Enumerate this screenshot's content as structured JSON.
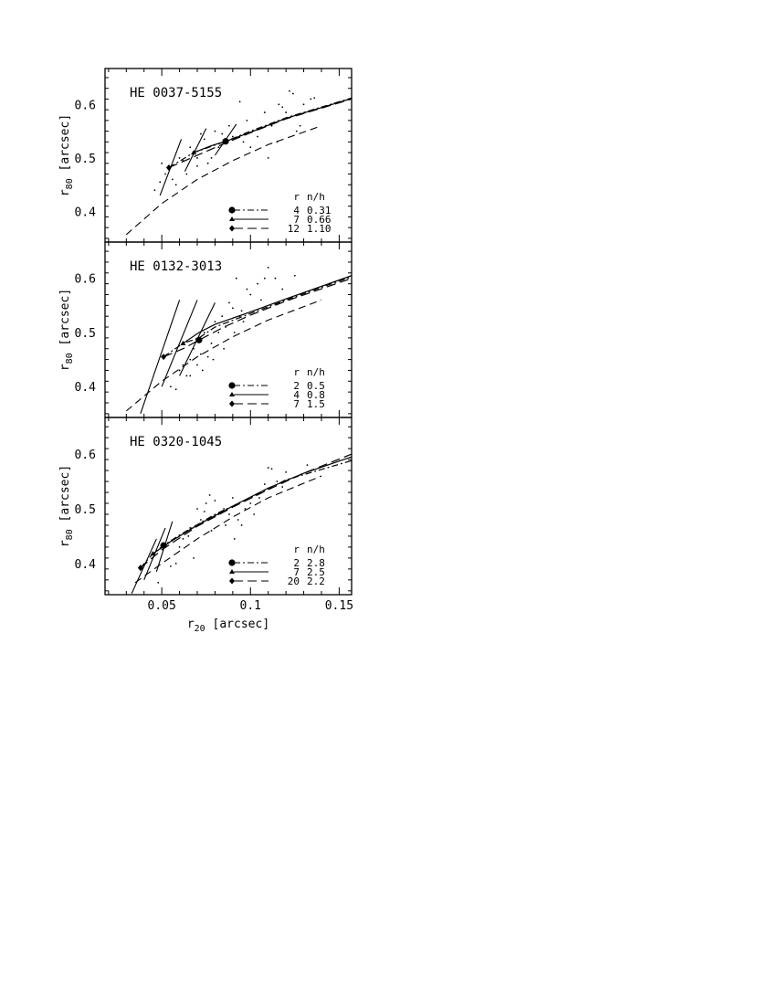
{
  "chart_data": [
    {
      "type": "scatter",
      "title": "HE 0037-5155",
      "ylabel": "r80 [arcsec]",
      "xlim": [
        0.018,
        0.157
      ],
      "ylim": [
        0.343,
        0.667
      ],
      "yticks": [
        "0.4",
        "0.5",
        "0.6"
      ],
      "legend": {
        "placement": "bottom-right",
        "header": [
          "r",
          "n/h"
        ],
        "entries": [
          {
            "marker": "circle",
            "style": "dash-dot",
            "r": "4",
            "nh": "0.31"
          },
          {
            "marker": "triangle",
            "style": "solid",
            "r": "7",
            "nh": "0.66"
          },
          {
            "marker": "diamond",
            "style": "long-dash",
            "r": "12",
            "nh": "1.10"
          }
        ]
      },
      "model_curve": [
        [
          0.03,
          0.357
        ],
        [
          0.05,
          0.415
        ],
        [
          0.07,
          0.46
        ],
        [
          0.09,
          0.495
        ],
        [
          0.11,
          0.525
        ],
        [
          0.14,
          0.56
        ]
      ],
      "fits": [
        [
          [
            0.054,
            0.482
          ],
          [
            0.068,
            0.51
          ],
          [
            0.086,
            0.531
          ],
          [
            0.1,
            0.55
          ],
          [
            0.12,
            0.575
          ],
          [
            0.157,
            0.612
          ]
        ],
        [
          [
            0.068,
            0.51
          ],
          [
            0.078,
            0.523
          ],
          [
            0.086,
            0.531
          ],
          [
            0.1,
            0.548
          ],
          [
            0.12,
            0.574
          ],
          [
            0.157,
            0.611
          ]
        ],
        [
          [
            0.054,
            0.482
          ],
          [
            0.07,
            0.505
          ],
          [
            0.086,
            0.528
          ],
          [
            0.1,
            0.547
          ],
          [
            0.12,
            0.573
          ],
          [
            0.157,
            0.61
          ]
        ]
      ],
      "markers": [
        {
          "shape": "diamond",
          "x": 0.054,
          "y": 0.482
        },
        {
          "shape": "triangle",
          "x": 0.068,
          "y": 0.51
        },
        {
          "shape": "circle",
          "x": 0.086,
          "y": 0.531
        }
      ],
      "slopes": [
        [
          [
            0.049,
            0.43
          ],
          [
            0.061,
            0.535
          ]
        ],
        [
          [
            0.063,
            0.475
          ],
          [
            0.075,
            0.555
          ]
        ],
        [
          [
            0.08,
            0.505
          ],
          [
            0.092,
            0.563
          ]
        ]
      ],
      "points": [
        [
          0.046,
          0.44
        ],
        [
          0.049,
          0.455
        ],
        [
          0.052,
          0.47
        ],
        [
          0.05,
          0.49
        ],
        [
          0.056,
          0.46
        ],
        [
          0.058,
          0.45
        ],
        [
          0.06,
          0.5
        ],
        [
          0.062,
          0.495
        ],
        [
          0.064,
          0.47
        ],
        [
          0.066,
          0.52
        ],
        [
          0.07,
          0.485
        ],
        [
          0.072,
          0.545
        ],
        [
          0.074,
          0.535
        ],
        [
          0.076,
          0.49
        ],
        [
          0.078,
          0.5
        ],
        [
          0.08,
          0.55
        ],
        [
          0.084,
          0.545
        ],
        [
          0.088,
          0.56
        ],
        [
          0.09,
          0.54
        ],
        [
          0.094,
          0.605
        ],
        [
          0.096,
          0.53
        ],
        [
          0.1,
          0.52
        ],
        [
          0.104,
          0.54
        ],
        [
          0.108,
          0.585
        ],
        [
          0.11,
          0.5
        ],
        [
          0.112,
          0.56
        ],
        [
          0.116,
          0.6
        ],
        [
          0.118,
          0.595
        ],
        [
          0.12,
          0.585
        ],
        [
          0.122,
          0.625
        ],
        [
          0.124,
          0.62
        ],
        [
          0.126,
          0.55
        ],
        [
          0.128,
          0.56
        ],
        [
          0.13,
          0.6
        ],
        [
          0.134,
          0.61
        ],
        [
          0.136,
          0.612
        ],
        [
          0.115,
          0.53
        ],
        [
          0.098,
          0.57
        ],
        [
          0.07,
          0.5
        ],
        [
          0.082,
          0.52
        ]
      ]
    },
    {
      "type": "scatter",
      "title": "HE 0132-3013",
      "ylabel": "r80 [arcsec]",
      "xlim": [
        0.018,
        0.157
      ],
      "ylim": [
        0.343,
        0.667
      ],
      "yticks": [
        "0.4",
        "0.5",
        "0.6"
      ],
      "legend": {
        "placement": "bottom-right",
        "header": [
          "r",
          "n/h"
        ],
        "entries": [
          {
            "marker": "circle",
            "style": "dash-dot",
            "r": "2",
            "nh": "0.5"
          },
          {
            "marker": "triangle",
            "style": "solid",
            "r": "4",
            "nh": "0.8"
          },
          {
            "marker": "diamond",
            "style": "long-dash",
            "r": "7",
            "nh": "1.5"
          }
        ]
      },
      "model_curve": [
        [
          0.03,
          0.355
        ],
        [
          0.05,
          0.41
        ],
        [
          0.07,
          0.455
        ],
        [
          0.09,
          0.492
        ],
        [
          0.11,
          0.523
        ],
        [
          0.14,
          0.56
        ]
      ],
      "fits": [
        [
          [
            0.051,
            0.455
          ],
          [
            0.062,
            0.48
          ],
          [
            0.071,
            0.49
          ],
          [
            0.08,
            0.51
          ],
          [
            0.1,
            0.535
          ],
          [
            0.12,
            0.56
          ],
          [
            0.157,
            0.603
          ]
        ],
        [
          [
            0.062,
            0.48
          ],
          [
            0.071,
            0.5
          ],
          [
            0.08,
            0.515
          ],
          [
            0.1,
            0.538
          ],
          [
            0.12,
            0.562
          ],
          [
            0.157,
            0.605
          ]
        ],
        [
          [
            0.051,
            0.455
          ],
          [
            0.062,
            0.47
          ],
          [
            0.071,
            0.486
          ],
          [
            0.085,
            0.51
          ],
          [
            0.1,
            0.532
          ],
          [
            0.12,
            0.558
          ],
          [
            0.157,
            0.6
          ]
        ]
      ],
      "markers": [
        {
          "shape": "diamond",
          "x": 0.051,
          "y": 0.455
        },
        {
          "shape": "triangle",
          "x": 0.062,
          "y": 0.48
        },
        {
          "shape": "circle",
          "x": 0.071,
          "y": 0.486
        }
      ],
      "slopes": [
        [
          [
            0.038,
            0.35
          ],
          [
            0.06,
            0.56
          ]
        ],
        [
          [
            0.05,
            0.4
          ],
          [
            0.07,
            0.56
          ]
        ],
        [
          [
            0.06,
            0.42
          ],
          [
            0.08,
            0.555
          ]
        ]
      ],
      "points": [
        [
          0.055,
          0.4
        ],
        [
          0.058,
          0.395
        ],
        [
          0.06,
          0.43
        ],
        [
          0.062,
          0.44
        ],
        [
          0.064,
          0.42
        ],
        [
          0.066,
          0.45
        ],
        [
          0.068,
          0.47
        ],
        [
          0.07,
          0.44
        ],
        [
          0.072,
          0.46
        ],
        [
          0.074,
          0.5
        ],
        [
          0.076,
          0.455
        ],
        [
          0.078,
          0.48
        ],
        [
          0.08,
          0.52
        ],
        [
          0.082,
          0.5
        ],
        [
          0.084,
          0.53
        ],
        [
          0.086,
          0.51
        ],
        [
          0.088,
          0.555
        ],
        [
          0.09,
          0.545
        ],
        [
          0.092,
          0.6
        ],
        [
          0.094,
          0.53
        ],
        [
          0.096,
          0.52
        ],
        [
          0.098,
          0.58
        ],
        [
          0.1,
          0.57
        ],
        [
          0.104,
          0.59
        ],
        [
          0.106,
          0.56
        ],
        [
          0.108,
          0.6
        ],
        [
          0.11,
          0.62
        ],
        [
          0.114,
          0.6
        ],
        [
          0.118,
          0.58
        ],
        [
          0.125,
          0.605
        ],
        [
          0.073,
          0.43
        ],
        [
          0.079,
          0.45
        ],
        [
          0.085,
          0.47
        ],
        [
          0.091,
          0.5
        ],
        [
          0.066,
          0.42
        ],
        [
          0.095,
          0.54
        ]
      ]
    },
    {
      "type": "scatter",
      "title": "HE 0320-1045",
      "xlabel": "r20 [arcsec]",
      "ylabel": "r80 [arcsec]",
      "xlim": [
        0.018,
        0.157
      ],
      "ylim": [
        0.343,
        0.667
      ],
      "xticks": [
        "0.05",
        "0.1",
        "0.15"
      ],
      "yticks": [
        "0.4",
        "0.5",
        "0.6"
      ],
      "legend": {
        "placement": "bottom-right",
        "header": [
          "r",
          "n/h"
        ],
        "entries": [
          {
            "marker": "circle",
            "style": "dash-dot",
            "r": "2",
            "nh": "2.8"
          },
          {
            "marker": "triangle",
            "style": "solid",
            "r": "7",
            "nh": "2.5"
          },
          {
            "marker": "diamond",
            "style": "long-dash",
            "r": "20",
            "nh": "2.2"
          }
        ]
      },
      "model_curve": [
        [
          0.035,
          0.365
        ],
        [
          0.05,
          0.4
        ],
        [
          0.07,
          0.445
        ],
        [
          0.09,
          0.485
        ],
        [
          0.11,
          0.52
        ],
        [
          0.14,
          0.56
        ]
      ],
      "fits": [
        [
          [
            0.038,
            0.392
          ],
          [
            0.045,
            0.418
          ],
          [
            0.051,
            0.433
          ],
          [
            0.06,
            0.452
          ],
          [
            0.08,
            0.49
          ],
          [
            0.1,
            0.52
          ],
          [
            0.12,
            0.553
          ],
          [
            0.157,
            0.588
          ]
        ],
        [
          [
            0.045,
            0.418
          ],
          [
            0.055,
            0.44
          ],
          [
            0.07,
            0.47
          ],
          [
            0.09,
            0.505
          ],
          [
            0.11,
            0.538
          ],
          [
            0.13,
            0.565
          ],
          [
            0.157,
            0.595
          ]
        ],
        [
          [
            0.038,
            0.392
          ],
          [
            0.05,
            0.425
          ],
          [
            0.07,
            0.468
          ],
          [
            0.09,
            0.503
          ],
          [
            0.11,
            0.535
          ],
          [
            0.13,
            0.565
          ],
          [
            0.157,
            0.6
          ]
        ]
      ],
      "markers": [
        {
          "shape": "diamond",
          "x": 0.038,
          "y": 0.392
        },
        {
          "shape": "triangle",
          "x": 0.045,
          "y": 0.418
        },
        {
          "shape": "circle",
          "x": 0.051,
          "y": 0.433
        }
      ],
      "slopes": [
        [
          [
            0.033,
            0.345
          ],
          [
            0.047,
            0.445
          ]
        ],
        [
          [
            0.04,
            0.37
          ],
          [
            0.052,
            0.465
          ]
        ],
        [
          [
            0.047,
            0.385
          ],
          [
            0.056,
            0.477
          ]
        ]
      ],
      "points": [
        [
          0.048,
          0.365
        ],
        [
          0.055,
          0.395
        ],
        [
          0.058,
          0.4
        ],
        [
          0.06,
          0.43
        ],
        [
          0.062,
          0.445
        ],
        [
          0.065,
          0.45
        ],
        [
          0.068,
          0.41
        ],
        [
          0.07,
          0.5
        ],
        [
          0.072,
          0.48
        ],
        [
          0.074,
          0.495
        ],
        [
          0.075,
          0.51
        ],
        [
          0.077,
          0.525
        ],
        [
          0.08,
          0.515
        ],
        [
          0.082,
          0.49
        ],
        [
          0.085,
          0.5
        ],
        [
          0.088,
          0.49
        ],
        [
          0.09,
          0.52
        ],
        [
          0.091,
          0.445
        ],
        [
          0.093,
          0.48
        ],
        [
          0.095,
          0.47
        ],
        [
          0.097,
          0.5
        ],
        [
          0.1,
          0.51
        ],
        [
          0.102,
          0.49
        ],
        [
          0.105,
          0.52
        ],
        [
          0.108,
          0.545
        ],
        [
          0.11,
          0.575
        ],
        [
          0.112,
          0.573
        ],
        [
          0.115,
          0.55
        ],
        [
          0.118,
          0.54
        ],
        [
          0.12,
          0.567
        ],
        [
          0.132,
          0.58
        ],
        [
          0.066,
          0.465
        ],
        [
          0.078,
          0.46
        ],
        [
          0.086,
          0.47
        ]
      ]
    }
  ]
}
